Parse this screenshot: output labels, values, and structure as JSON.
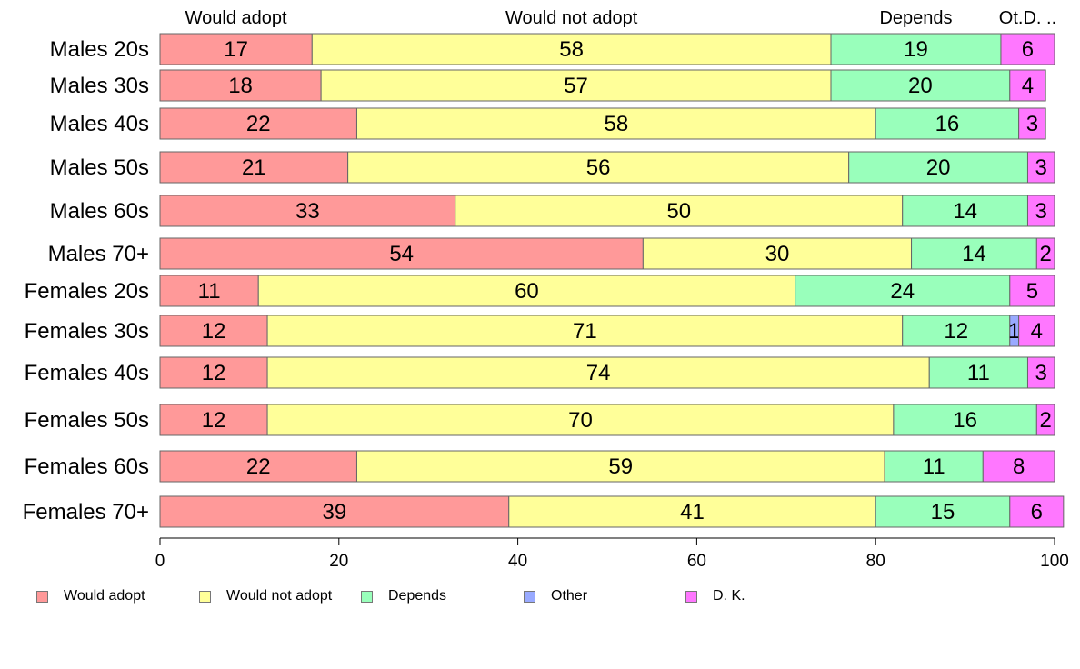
{
  "chart_data": {
    "type": "bar",
    "orientation": "horizontal",
    "stacked": true,
    "categories": [
      "Males 20s",
      "Males 30s",
      "Males 40s",
      "Males 50s",
      "Males 60s",
      "Males 70+",
      "Females 20s",
      "Females 30s",
      "Females 40s",
      "Females 50s",
      "Females 60s",
      "Females 70+"
    ],
    "series": [
      {
        "name": "Would adopt",
        "color": "#ff9999",
        "values": [
          17,
          18,
          22,
          21,
          33,
          54,
          11,
          12,
          12,
          12,
          22,
          39
        ]
      },
      {
        "name": "Would not adopt",
        "color": "#ffff99",
        "values": [
          58,
          57,
          58,
          56,
          50,
          30,
          60,
          71,
          74,
          70,
          59,
          41
        ]
      },
      {
        "name": "Depends",
        "color": "#99ffbb",
        "values": [
          19,
          20,
          16,
          20,
          14,
          14,
          24,
          12,
          11,
          16,
          11,
          15
        ]
      },
      {
        "name": "Other",
        "color": "#99aaff",
        "values": [
          0,
          0,
          0,
          0,
          0,
          0,
          0,
          1,
          0,
          0,
          0,
          0
        ]
      },
      {
        "name": "D. K.",
        "color": "#ff77ff",
        "values": [
          6,
          4,
          3,
          3,
          3,
          2,
          5,
          4,
          3,
          2,
          8,
          6
        ]
      }
    ],
    "top_labels": [
      "Would adopt",
      "Would not adopt",
      "Depends",
      "Ot.D. .."
    ],
    "xlim": [
      0,
      100
    ],
    "xticks": [
      0,
      20,
      40,
      60,
      80,
      100
    ],
    "grid": false,
    "legend_position": "bottom-left"
  }
}
